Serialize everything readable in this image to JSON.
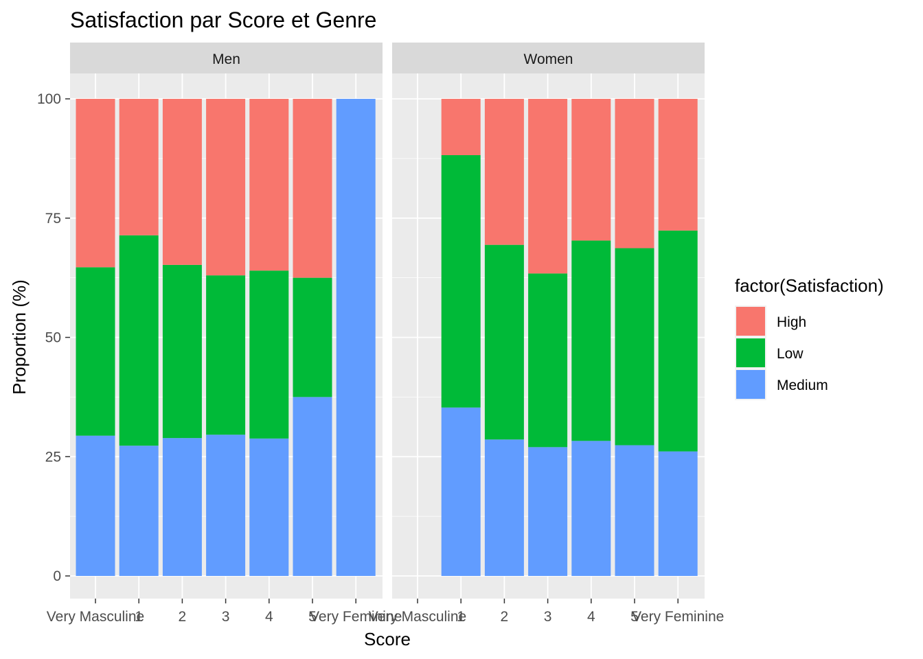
{
  "chart_data": {
    "type": "bar",
    "stacked": true,
    "title": "Satisfaction par Score et Genre",
    "xlabel": "Score",
    "ylabel": "Proportion (%)",
    "ylim": [
      0,
      100
    ],
    "yticks": [
      0,
      25,
      50,
      75,
      100
    ],
    "grid": true,
    "legend": {
      "title": "factor(Satisfaction)",
      "placement": "right",
      "items": [
        {
          "name": "High",
          "color": "#F8766D"
        },
        {
          "name": "Low",
          "color": "#00BA38"
        },
        {
          "name": "Medium",
          "color": "#619CFF"
        }
      ]
    },
    "categories": [
      "Very Masculine",
      "1",
      "2",
      "3",
      "4",
      "5",
      "Very Feminine"
    ],
    "panels": [
      {
        "name": "Men",
        "series": [
          {
            "name": "Medium",
            "values": [
              29.4,
              27.3,
              28.9,
              29.6,
              28.8,
              37.5,
              100
            ]
          },
          {
            "name": "Low",
            "values": [
              35.3,
              44.1,
              36.3,
              33.4,
              35.2,
              25.0,
              0
            ]
          },
          {
            "name": "High",
            "values": [
              35.3,
              28.6,
              34.8,
              37.0,
              36.0,
              37.5,
              0
            ]
          }
        ]
      },
      {
        "name": "Women",
        "series": [
          {
            "name": "Medium",
            "values": [
              null,
              35.3,
              28.6,
              27.0,
              28.3,
              27.4,
              26.1
            ]
          },
          {
            "name": "Low",
            "values": [
              null,
              52.9,
              40.8,
              36.4,
              42.0,
              41.3,
              46.3
            ]
          },
          {
            "name": "High",
            "values": [
              null,
              11.8,
              30.6,
              36.6,
              29.7,
              31.3,
              27.6
            ]
          }
        ]
      }
    ]
  }
}
